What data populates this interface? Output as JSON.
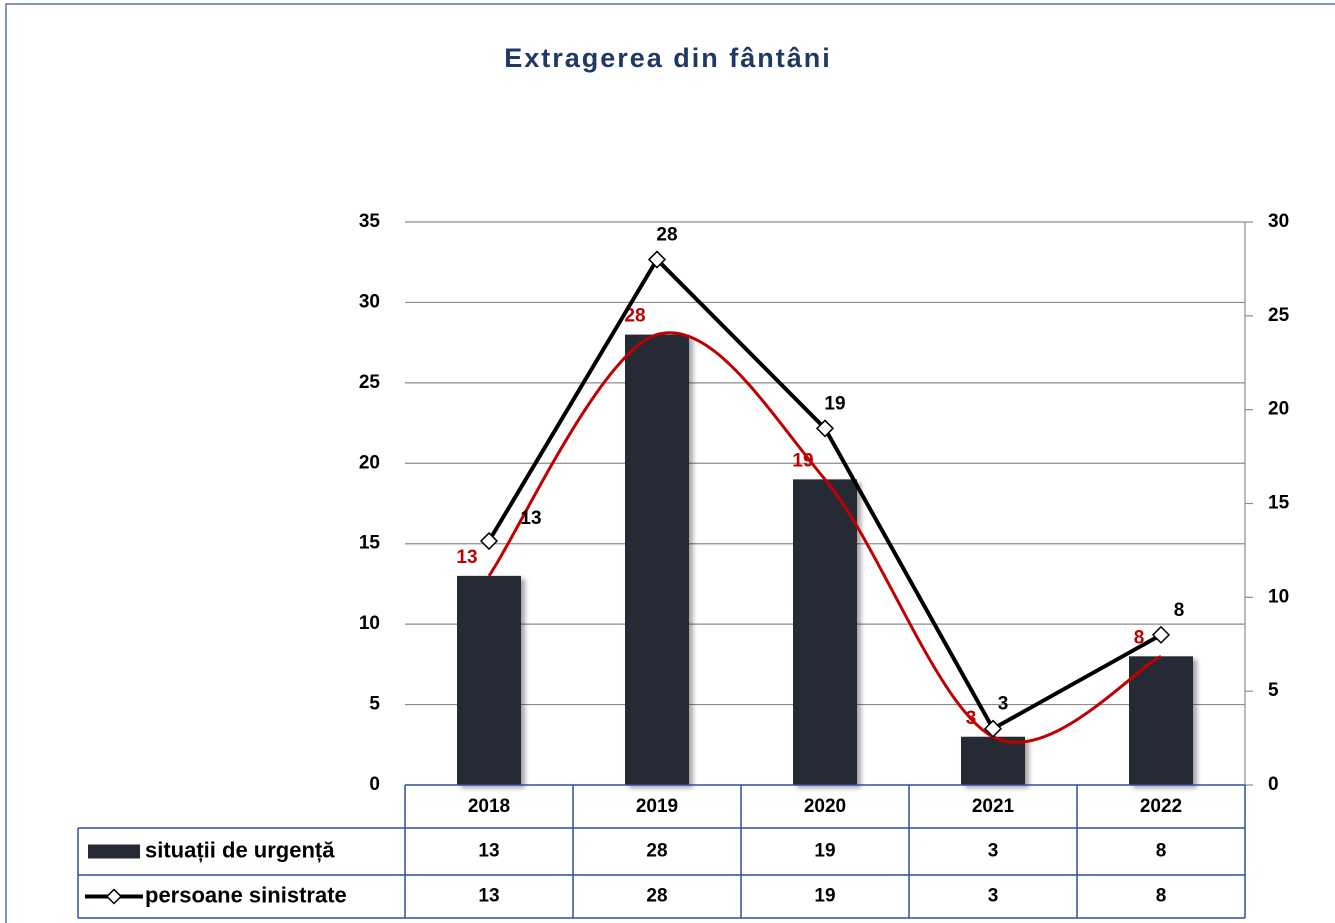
{
  "chart_data": {
    "type": "bar",
    "title": "Extragerea din fântâni",
    "categories": [
      "2018",
      "2019",
      "2020",
      "2021",
      "2022"
    ],
    "series": [
      {
        "name": "situații de urgență",
        "type": "bar",
        "color": "#252a35",
        "trend_color": "#c00000",
        "label_color": "#c00000",
        "values": [
          13,
          28,
          19,
          3,
          8
        ]
      },
      {
        "name": "persoane sinistrate",
        "type": "line",
        "axis": "y2",
        "color": "#000000",
        "marker": "diamond",
        "label_color": "#000000",
        "values": [
          13,
          28,
          19,
          3,
          8
        ]
      }
    ],
    "ylim": [
      0,
      35
    ],
    "yticks": [
      0,
      5,
      10,
      15,
      20,
      25,
      30,
      35
    ],
    "y2lim": [
      0,
      30
    ],
    "y2ticks": [
      0,
      5,
      10,
      15,
      20,
      25,
      30
    ],
    "grid": true,
    "data_table": true
  }
}
